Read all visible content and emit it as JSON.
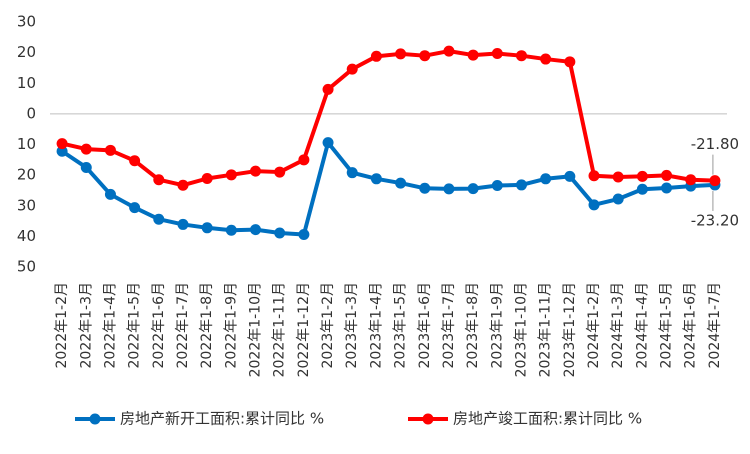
{
  "chart_data": {
    "type": "line",
    "categories": [
      "2022年1-2月",
      "2022年1-3月",
      "2022年1-4月",
      "2022年1-5月",
      "2022年1-6月",
      "2022年1-7月",
      "2022年1-8月",
      "2022年1-9月",
      "2022年1-10月",
      "2022年1-11月",
      "2022年1-12月",
      "2023年1-2月",
      "2023年1-3月",
      "2023年1-4月",
      "2023年1-5月",
      "2023年1-6月",
      "2023年1-7月",
      "2023年1-8月",
      "2023年1-9月",
      "2023年1-10月",
      "2023年1-11月",
      "2023年1-12月",
      "2024年1-2月",
      "2024年1-3月",
      "2024年1-4月",
      "2024年1-5月",
      "2024年1-6月",
      "2024年1-7月"
    ],
    "series": [
      {
        "name": "房地产新开工面积:累计同比 %",
        "color": "#0070c0",
        "values": [
          -12.2,
          -17.5,
          -26.3,
          -30.6,
          -34.4,
          -36.1,
          -37.2,
          -38.0,
          -37.8,
          -38.9,
          -39.4,
          -9.4,
          -19.2,
          -21.2,
          -22.6,
          -24.3,
          -24.5,
          -24.4,
          -23.4,
          -23.2,
          -21.2,
          -20.4,
          -29.7,
          -27.8,
          -24.6,
          -24.2,
          -23.6,
          -23.2
        ],
        "value_labels": [
          null,
          null,
          null,
          null,
          null,
          null,
          null,
          null,
          null,
          null,
          null,
          null,
          null,
          null,
          null,
          null,
          null,
          null,
          null,
          null,
          null,
          null,
          null,
          null,
          null,
          null,
          null,
          "-23.20"
        ]
      },
      {
        "name": "房地产竣工面积:累计同比 %",
        "color": "#ff0000",
        "values": [
          -9.7,
          -11.5,
          -11.9,
          -15.3,
          -21.5,
          -23.3,
          -21.1,
          -19.9,
          -18.7,
          -19.0,
          -15.0,
          8.0,
          14.6,
          18.8,
          19.6,
          19.0,
          20.5,
          19.2,
          19.7,
          19.0,
          17.9,
          17.0,
          -20.2,
          -20.6,
          -20.4,
          -20.1,
          -21.5,
          -21.8
        ],
        "value_labels": [
          null,
          null,
          null,
          null,
          null,
          null,
          null,
          null,
          null,
          null,
          null,
          null,
          null,
          null,
          null,
          null,
          null,
          null,
          null,
          null,
          null,
          null,
          null,
          null,
          null,
          null,
          null,
          "-21.80"
        ]
      }
    ],
    "ylim": [
      -50,
      30
    ],
    "yticks": [
      30,
      20,
      10,
      0,
      {
        "value": -10,
        "label": "10"
      },
      {
        "value": -20,
        "label": "20"
      },
      {
        "value": -30,
        "label": "30"
      },
      {
        "value": -40,
        "label": "40"
      },
      {
        "value": -50,
        "label": "50"
      }
    ],
    "grid": false
  }
}
